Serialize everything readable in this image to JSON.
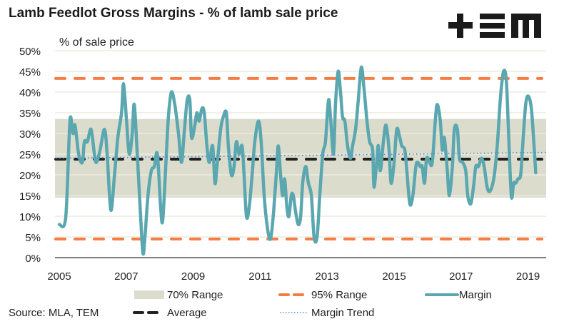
{
  "title": "Lamb Feedlot Gross Margins - % of lamb sale price",
  "logo": {
    "name": "TEM logo",
    "glyphs": [
      "+",
      "=",
      "m"
    ]
  },
  "source": "Source: MLA, TEM",
  "chart_data": {
    "type": "line",
    "title": "Lamb Feedlot Gross Margins - % of lamb sale price",
    "ylabel": "% of sale price",
    "xlabel": "",
    "xlim": [
      2005,
      2019.75
    ],
    "ylim": [
      0,
      50
    ],
    "x_ticks": [
      "2005",
      "2007",
      "2009",
      "2011",
      "2013",
      "2015",
      "2017",
      "2019"
    ],
    "y_ticks": [
      "0%",
      "5%",
      "10%",
      "15%",
      "20%",
      "25%",
      "30%",
      "35%",
      "40%",
      "45%",
      "50%"
    ],
    "grid": true,
    "colors": {
      "margin": "#5ba7b0",
      "range95": "#f47d45",
      "average": "#222222",
      "trend": "#4a8ee0",
      "range70": "#dcdccd"
    },
    "range70": [
      14.5,
      33.5
    ],
    "range95": [
      4.5,
      43.3
    ],
    "average": 23.8,
    "trend": {
      "start": [
        2005,
        24.0
      ],
      "end": [
        2019.75,
        25.4
      ]
    },
    "legend": [
      {
        "label": "70% Range",
        "style": "band"
      },
      {
        "label": "95% Range",
        "style": "dashed-orange"
      },
      {
        "label": "Margin",
        "style": "solid-teal"
      },
      {
        "label": "Average",
        "style": "dashed-black"
      },
      {
        "label": "Margin Trend",
        "style": "dotted-blue"
      }
    ],
    "legend_position": "bottom",
    "series": [
      {
        "name": "Margin",
        "points": [
          [
            2005.0,
            8
          ],
          [
            2005.19,
            9.5
          ],
          [
            2005.3,
            30
          ],
          [
            2005.34,
            34
          ],
          [
            2005.41,
            30
          ],
          [
            2005.47,
            32
          ],
          [
            2005.58,
            25
          ],
          [
            2005.69,
            23
          ],
          [
            2005.75,
            28
          ],
          [
            2005.84,
            28
          ],
          [
            2005.95,
            31
          ],
          [
            2006.05,
            25
          ],
          [
            2006.11,
            23
          ],
          [
            2006.22,
            26
          ],
          [
            2006.35,
            31
          ],
          [
            2006.43,
            25
          ],
          [
            2006.54,
            11.5
          ],
          [
            2006.65,
            20
          ],
          [
            2006.75,
            29
          ],
          [
            2006.86,
            35
          ],
          [
            2006.92,
            42
          ],
          [
            2007.01,
            33
          ],
          [
            2007.09,
            25
          ],
          [
            2007.18,
            30
          ],
          [
            2007.24,
            37
          ],
          [
            2007.33,
            25
          ],
          [
            2007.43,
            10
          ],
          [
            2007.5,
            1
          ],
          [
            2007.56,
            5
          ],
          [
            2007.65,
            15
          ],
          [
            2007.75,
            21
          ],
          [
            2007.84,
            22
          ],
          [
            2007.93,
            25
          ],
          [
            2008.03,
            12
          ],
          [
            2008.09,
            9
          ],
          [
            2008.18,
            22
          ],
          [
            2008.26,
            34
          ],
          [
            2008.35,
            40
          ],
          [
            2008.45,
            37
          ],
          [
            2008.56,
            30
          ],
          [
            2008.65,
            23
          ],
          [
            2008.73,
            30
          ],
          [
            2008.82,
            38
          ],
          [
            2008.9,
            38
          ],
          [
            2008.95,
            29
          ],
          [
            2009.05,
            32
          ],
          [
            2009.11,
            35
          ],
          [
            2009.18,
            33
          ],
          [
            2009.26,
            36
          ],
          [
            2009.33,
            35
          ],
          [
            2009.41,
            27
          ],
          [
            2009.48,
            23
          ],
          [
            2009.58,
            27
          ],
          [
            2009.65,
            18
          ],
          [
            2009.71,
            22
          ],
          [
            2009.82,
            31
          ],
          [
            2009.9,
            34
          ],
          [
            2009.99,
            35
          ],
          [
            2010.05,
            27
          ],
          [
            2010.14,
            20
          ],
          [
            2010.22,
            22
          ],
          [
            2010.29,
            28
          ],
          [
            2010.37,
            25
          ],
          [
            2010.46,
            27
          ],
          [
            2010.52,
            20
          ],
          [
            2010.59,
            10
          ],
          [
            2010.67,
            12
          ],
          [
            2010.76,
            20
          ],
          [
            2010.84,
            28
          ],
          [
            2010.95,
            33
          ],
          [
            2011.03,
            28
          ],
          [
            2011.12,
            15
          ],
          [
            2011.22,
            7
          ],
          [
            2011.31,
            4.5
          ],
          [
            2011.39,
            10
          ],
          [
            2011.48,
            20
          ],
          [
            2011.54,
            27
          ],
          [
            2011.61,
            20
          ],
          [
            2011.67,
            15
          ],
          [
            2011.73,
            19
          ],
          [
            2011.8,
            12
          ],
          [
            2011.86,
            10
          ],
          [
            2011.93,
            15
          ],
          [
            2011.99,
            15
          ],
          [
            2012.06,
            11
          ],
          [
            2012.14,
            8
          ],
          [
            2012.21,
            10
          ],
          [
            2012.27,
            18
          ],
          [
            2012.36,
            22
          ],
          [
            2012.44,
            18
          ],
          [
            2012.53,
            15
          ],
          [
            2012.61,
            5
          ],
          [
            2012.7,
            5
          ],
          [
            2012.78,
            15
          ],
          [
            2012.87,
            25
          ],
          [
            2012.95,
            28
          ],
          [
            2013.04,
            38
          ],
          [
            2013.1,
            34
          ],
          [
            2013.19,
            25
          ],
          [
            2013.25,
            37
          ],
          [
            2013.33,
            45
          ],
          [
            2013.4,
            40
          ],
          [
            2013.46,
            34
          ],
          [
            2013.53,
            33
          ],
          [
            2013.61,
            27
          ],
          [
            2013.7,
            24
          ],
          [
            2013.76,
            27
          ],
          [
            2013.85,
            31
          ],
          [
            2013.93,
            38
          ],
          [
            2014.02,
            46
          ],
          [
            2014.1,
            41
          ],
          [
            2014.19,
            33
          ],
          [
            2014.27,
            28
          ],
          [
            2014.36,
            26
          ],
          [
            2014.4,
            17
          ],
          [
            2014.49,
            24
          ],
          [
            2014.53,
            27
          ],
          [
            2014.59,
            21
          ],
          [
            2014.68,
            28
          ],
          [
            2014.76,
            32
          ],
          [
            2014.85,
            26
          ],
          [
            2014.91,
            18
          ],
          [
            2015.0,
            23
          ],
          [
            2015.08,
            31
          ],
          [
            2015.17,
            29
          ],
          [
            2015.23,
            27
          ],
          [
            2015.32,
            26
          ],
          [
            2015.38,
            21
          ],
          [
            2015.47,
            13
          ],
          [
            2015.56,
            15
          ],
          [
            2015.65,
            22
          ],
          [
            2015.71,
            23
          ],
          [
            2015.78,
            22
          ],
          [
            2015.84,
            22
          ],
          [
            2015.91,
            18
          ],
          [
            2015.97,
            24
          ],
          [
            2016.06,
            23
          ],
          [
            2016.14,
            23
          ],
          [
            2016.23,
            33
          ],
          [
            2016.29,
            37
          ],
          [
            2016.38,
            33
          ],
          [
            2016.44,
            26
          ],
          [
            2016.5,
            29
          ],
          [
            2016.59,
            21
          ],
          [
            2016.65,
            15
          ],
          [
            2016.74,
            22
          ],
          [
            2016.8,
            31
          ],
          [
            2016.89,
            31
          ],
          [
            2016.95,
            24
          ],
          [
            2017.05,
            23
          ],
          [
            2017.14,
            21
          ],
          [
            2017.2,
            15
          ],
          [
            2017.29,
            13
          ],
          [
            2017.37,
            17
          ],
          [
            2017.44,
            22
          ],
          [
            2017.52,
            22
          ],
          [
            2017.61,
            24
          ],
          [
            2017.69,
            22
          ],
          [
            2017.78,
            17
          ],
          [
            2017.86,
            16
          ],
          [
            2017.95,
            18
          ],
          [
            2018.01,
            21
          ],
          [
            2018.09,
            28
          ],
          [
            2018.18,
            39
          ],
          [
            2018.27,
            45
          ],
          [
            2018.35,
            43
          ],
          [
            2018.41,
            32
          ],
          [
            2018.5,
            15
          ],
          [
            2018.57,
            18
          ],
          [
            2018.63,
            18
          ],
          [
            2018.7,
            19
          ],
          [
            2018.78,
            20
          ],
          [
            2018.84,
            27
          ],
          [
            2018.93,
            37
          ],
          [
            2019.01,
            39
          ],
          [
            2019.1,
            36
          ],
          [
            2019.18,
            27
          ],
          [
            2019.23,
            20.5
          ]
        ]
      }
    ]
  }
}
